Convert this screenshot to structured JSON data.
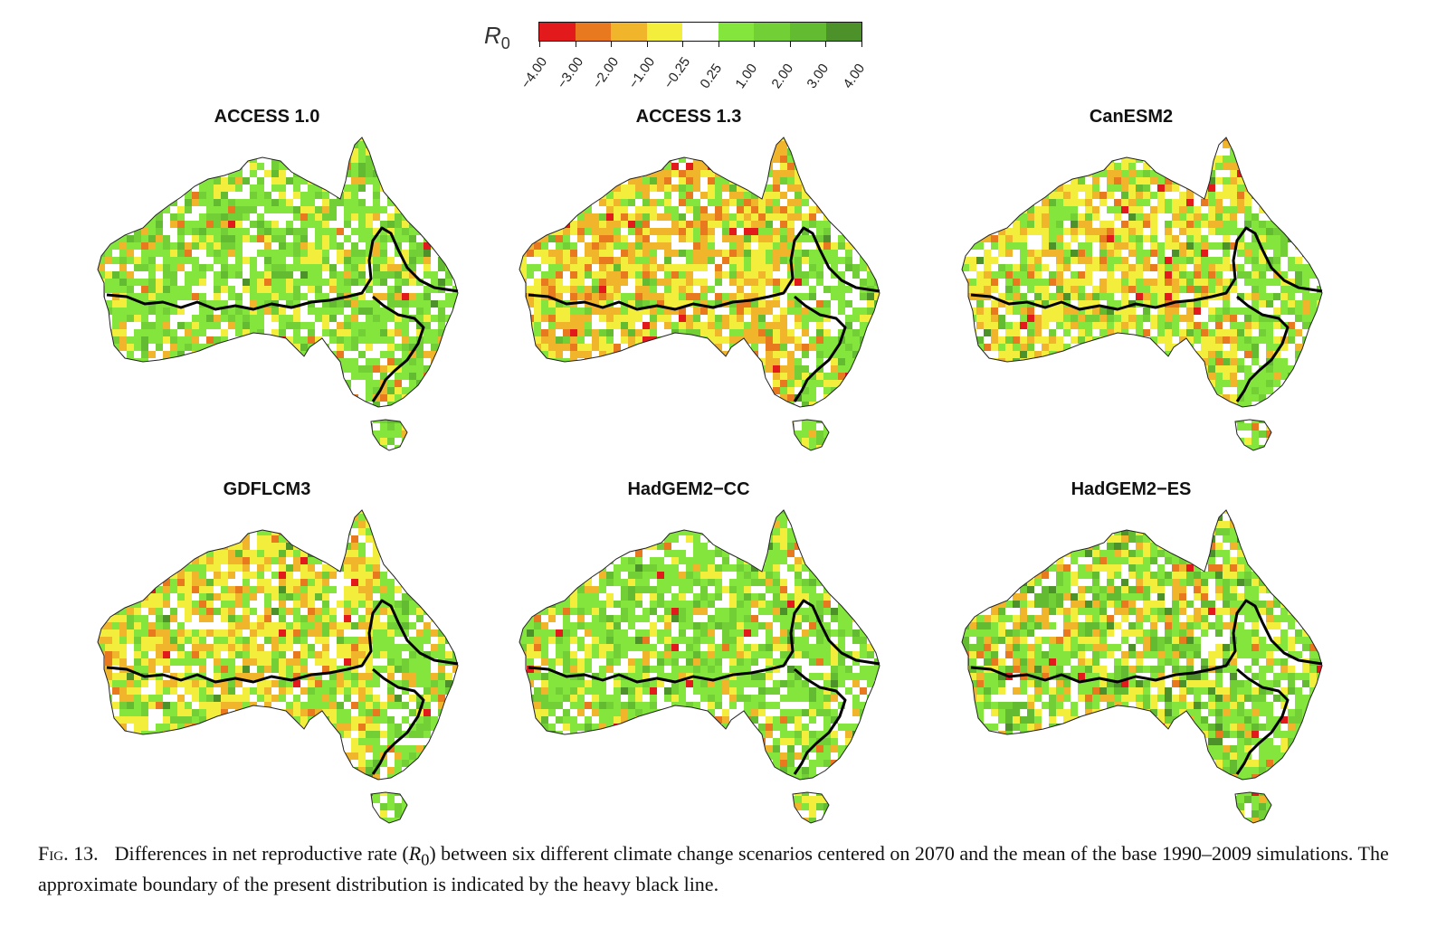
{
  "legend": {
    "symbol": "R",
    "symbol_sub": "0",
    "colors": [
      "#e31a1c",
      "#e8791f",
      "#f0b52a",
      "#f3ed3b",
      "#ffffff",
      "#84e63d",
      "#72d036",
      "#62bb31",
      "#4c912a"
    ],
    "tick_labels": [
      "−4.00",
      "−3.00",
      "−2.00",
      "−1.00",
      "−0.25",
      "0.25",
      "1.00",
      "2.00",
      "3.00",
      "4.00"
    ]
  },
  "panels": [
    {
      "title": "ACCESS 1.0",
      "dominant": "green"
    },
    {
      "title": "ACCESS 1.3",
      "dominant": "orange"
    },
    {
      "title": "CanESM2",
      "dominant": "yellow"
    },
    {
      "title": "GDFLCM3",
      "dominant": "yellow"
    },
    {
      "title": "HadGEM2−CC",
      "dominant": "green"
    },
    {
      "title": "HadGEM2−ES",
      "dominant": "mixed"
    }
  ],
  "caption": {
    "label": "Fig. 13.",
    "text_before": "Differences in net reproductive rate (",
    "symbol": "R",
    "symbol_sub": "0",
    "text_after": ") between six different climate change scenarios centered on 2070 and the mean of the base 1990–2009 simulations. The approximate boundary of the present distribution is indicated by the heavy black line."
  }
}
